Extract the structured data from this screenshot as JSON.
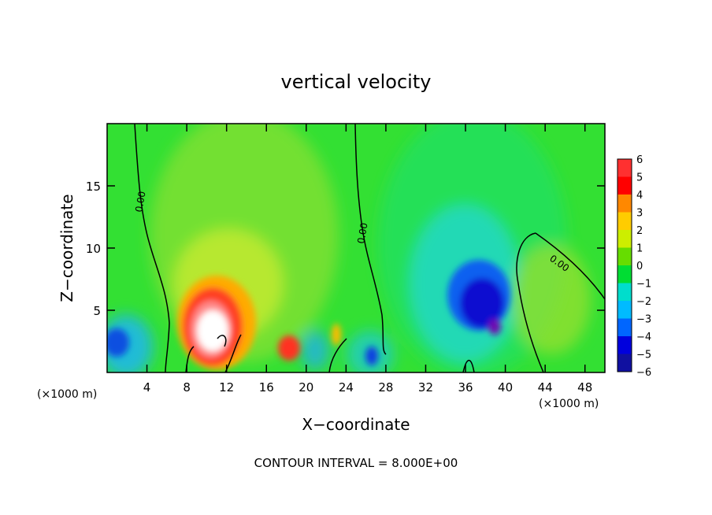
{
  "chart_data": {
    "type": "heatmap",
    "title": "vertical velocity",
    "xlabel": "X−coordinate",
    "ylabel": "Z−coordinate",
    "x_unit_left": "(×1000 m)",
    "x_unit_right": "(×1000 m)",
    "xlim": [
      0,
      50
    ],
    "ylim": [
      0,
      20
    ],
    "x_ticks": [
      4,
      8,
      12,
      16,
      20,
      24,
      28,
      32,
      36,
      40,
      44,
      48
    ],
    "y_ticks": [
      5,
      10,
      15
    ],
    "colorbar": {
      "min": -6,
      "max": 6,
      "labels": [
        "6",
        "5",
        "4",
        "3",
        "2",
        "1",
        "0",
        "−1",
        "−2",
        "−3",
        "−4",
        "−5",
        "−6"
      ]
    },
    "contour_labels": [
      "0.00",
      "0.00",
      "0.00"
    ],
    "footer": "CONTOUR INTERVAL = 8.000E+00",
    "features": [
      {
        "name": "updraft",
        "x": 10.5,
        "z": 3.0,
        "value": 6.5
      },
      {
        "name": "updraft",
        "x": 18.0,
        "z": 1.6,
        "value": 4.5
      },
      {
        "name": "downdraft",
        "x": 39.0,
        "z": 3.5,
        "value": -6.0
      },
      {
        "name": "downdraft",
        "x": 1.5,
        "z": 2.2,
        "value": -3.0
      }
    ],
    "grid": false,
    "legend": "colorbar-right"
  }
}
